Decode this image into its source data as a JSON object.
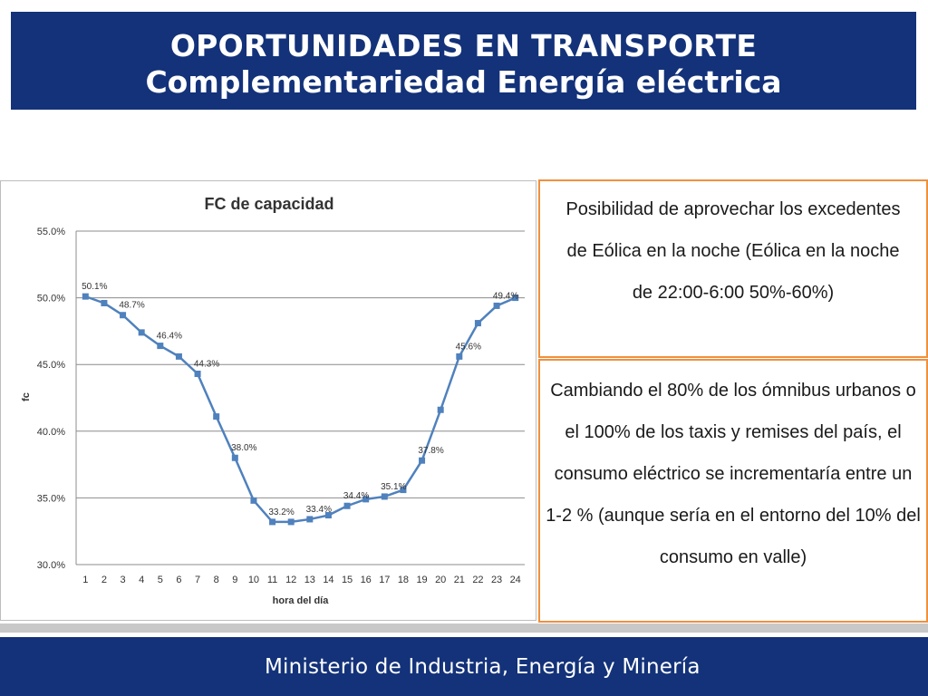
{
  "header": {
    "title_line1": "OPORTUNIDADES EN TRANSPORTE",
    "title_line2": "Complementariedad Energía eléctrica"
  },
  "notes": {
    "note1": "Posibilidad de aprovechar los excedentes de Eólica en la noche (Eólica en la noche de 22:00-6:00 50%-60%)",
    "note2": "Cambiando el 80% de los ómnibus urbanos o el 100% de los taxis y remises del país, el consumo eléctrico se incrementaría entre un 1-2 % (aunque sería en el entorno del 10% del consumo en valle)"
  },
  "footer": {
    "ministry": "Ministerio de Industria, Energía y Minería"
  },
  "colors": {
    "header_bg": "#133279",
    "line": "#4f81bd",
    "note_border": "#f0903d"
  },
  "chart_data": {
    "type": "line",
    "title": "FC de capacidad",
    "xlabel": "hora del día",
    "ylabel": "fc",
    "categories": [
      "1",
      "2",
      "3",
      "4",
      "5",
      "6",
      "7",
      "8",
      "9",
      "10",
      "11",
      "12",
      "13",
      "14",
      "15",
      "16",
      "17",
      "18",
      "19",
      "20",
      "21",
      "22",
      "23",
      "24"
    ],
    "series": [
      {
        "values": [
          50.1,
          49.6,
          48.7,
          47.4,
          46.4,
          45.6,
          44.3,
          41.1,
          38.0,
          34.8,
          33.2,
          33.2,
          33.4,
          33.7,
          34.4,
          34.9,
          35.1,
          35.6,
          37.8,
          41.6,
          45.6,
          48.1,
          49.4,
          50.0
        ]
      }
    ],
    "data_labels": [
      {
        "index": 0,
        "text": "50.1%"
      },
      {
        "index": 2,
        "text": "48.7%"
      },
      {
        "index": 4,
        "text": "46.4%"
      },
      {
        "index": 6,
        "text": "44.3%"
      },
      {
        "index": 8,
        "text": "38.0%"
      },
      {
        "index": 10,
        "text": "33.2%"
      },
      {
        "index": 12,
        "text": "33.4%"
      },
      {
        "index": 14,
        "text": "34.4%"
      },
      {
        "index": 16,
        "text": "35.1%"
      },
      {
        "index": 18,
        "text": "37.8%"
      },
      {
        "index": 20,
        "text": "45.6%"
      },
      {
        "index": 22,
        "text": "49.4%"
      }
    ],
    "yticks": [
      "30.0%",
      "35.0%",
      "40.0%",
      "45.0%",
      "50.0%",
      "55.0%"
    ],
    "ylim": [
      30,
      55
    ],
    "grid": true,
    "legend": "none"
  }
}
